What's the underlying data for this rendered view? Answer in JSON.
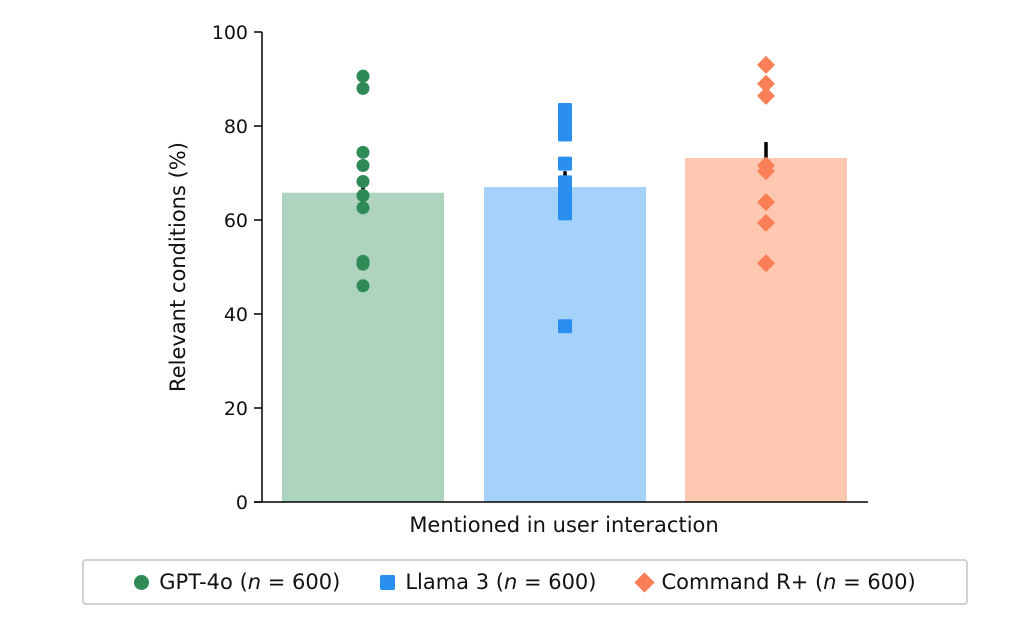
{
  "chart_data": {
    "type": "bar",
    "xlabel": "Mentioned in user interaction",
    "ylabel": "Relevant conditions (%)",
    "ylim": [
      0,
      100
    ],
    "yticks": [
      0,
      20,
      40,
      60,
      80,
      100
    ],
    "grid": false,
    "legend_position": "bottom",
    "series": [
      {
        "name": "GPT-4o",
        "n_label": "n",
        "n_value": "= 600)",
        "marker": "circle",
        "value": 65.8,
        "error": [
          62.0,
          69.0
        ],
        "points": [
          90.6,
          88.0,
          74.4,
          71.6,
          68.2,
          65.2,
          62.6,
          51.2,
          50.6,
          46.0
        ],
        "bar_color": "#aed3bf",
        "point_color": "#2e8b57"
      },
      {
        "name": "Llama 3",
        "n_label": "n",
        "n_value": "= 600)",
        "marker": "square",
        "value": 67.0,
        "error": [
          63.6,
          70.4
        ],
        "points": [
          83.4,
          81.0,
          78.2,
          72.0,
          68.0,
          66.2,
          64.0,
          61.4,
          37.4
        ],
        "bar_color": "#a5d2fb",
        "point_color": "#2b8ff0"
      },
      {
        "name": "Command R+",
        "n_label": "n",
        "n_value": "= 600)",
        "marker": "diamond",
        "value": 73.2,
        "error": [
          69.8,
          76.6
        ],
        "points": [
          93.0,
          89.0,
          86.4,
          71.6,
          70.4,
          63.8,
          59.4,
          50.8
        ],
        "bar_color": "#fdc7b0",
        "point_color": "#fb7f56"
      }
    ]
  },
  "legend": {
    "items": [
      {
        "prefix": "GPT-4o (",
        "n": "n",
        "suffix": " = 600)"
      },
      {
        "prefix": "Llama 3 (",
        "n": "n",
        "suffix": " = 600)"
      },
      {
        "prefix": "Command R+ (",
        "n": "n",
        "suffix": " = 600)"
      }
    ]
  }
}
